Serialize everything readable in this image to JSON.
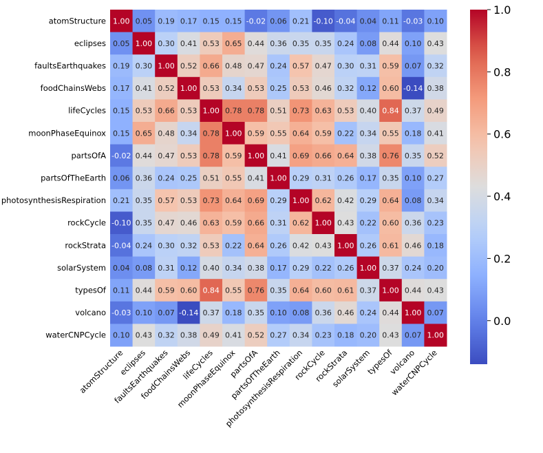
{
  "chart_data": {
    "type": "heatmap",
    "title": "",
    "xlabel": "",
    "ylabel": "",
    "labels": [
      "atomStructure",
      "eclipses",
      "faultsEarthquakes",
      "foodChainsWebs",
      "lifeCycles",
      "moonPhaseEquinox",
      "partsOfA",
      "partsOfTheEarth",
      "photosynthesisRespiration",
      "rockCycle",
      "rockStrata",
      "solarSystem",
      "typesOf",
      "volcano",
      "waterCNPCycle"
    ],
    "matrix": [
      [
        1.0,
        0.05,
        0.19,
        0.17,
        0.15,
        0.15,
        -0.02,
        0.06,
        0.21,
        -0.1,
        -0.04,
        0.04,
        0.11,
        -0.03,
        0.1
      ],
      [
        0.05,
        1.0,
        0.3,
        0.41,
        0.53,
        0.65,
        0.44,
        0.36,
        0.35,
        0.35,
        0.24,
        0.08,
        0.44,
        0.1,
        0.43
      ],
      [
        0.19,
        0.3,
        1.0,
        0.52,
        0.66,
        0.48,
        0.47,
        0.24,
        0.57,
        0.47,
        0.3,
        0.31,
        0.59,
        0.07,
        0.32
      ],
      [
        0.17,
        0.41,
        0.52,
        1.0,
        0.53,
        0.34,
        0.53,
        0.25,
        0.53,
        0.46,
        0.32,
        0.12,
        0.6,
        -0.14,
        0.38
      ],
      [
        0.15,
        0.53,
        0.66,
        0.53,
        1.0,
        0.78,
        0.78,
        0.51,
        0.73,
        0.63,
        0.53,
        0.4,
        0.84,
        0.37,
        0.49
      ],
      [
        0.15,
        0.65,
        0.48,
        0.34,
        0.78,
        1.0,
        0.59,
        0.55,
        0.64,
        0.59,
        0.22,
        0.34,
        0.55,
        0.18,
        0.41
      ],
      [
        -0.02,
        0.44,
        0.47,
        0.53,
        0.78,
        0.59,
        1.0,
        0.41,
        0.69,
        0.66,
        0.64,
        0.38,
        0.76,
        0.35,
        0.52
      ],
      [
        0.06,
        0.36,
        0.24,
        0.25,
        0.51,
        0.55,
        0.41,
        1.0,
        0.29,
        0.31,
        0.26,
        0.17,
        0.35,
        0.1,
        0.27
      ],
      [
        0.21,
        0.35,
        0.57,
        0.53,
        0.73,
        0.64,
        0.69,
        0.29,
        1.0,
        0.62,
        0.42,
        0.29,
        0.64,
        0.08,
        0.34
      ],
      [
        -0.1,
        0.35,
        0.47,
        0.46,
        0.63,
        0.59,
        0.66,
        0.31,
        0.62,
        1.0,
        0.43,
        0.22,
        0.6,
        0.36,
        0.23
      ],
      [
        -0.04,
        0.24,
        0.3,
        0.32,
        0.53,
        0.22,
        0.64,
        0.26,
        0.42,
        0.43,
        1.0,
        0.26,
        0.61,
        0.46,
        0.18
      ],
      [
        0.04,
        0.08,
        0.31,
        0.12,
        0.4,
        0.34,
        0.38,
        0.17,
        0.29,
        0.22,
        0.26,
        1.0,
        0.37,
        0.24,
        0.2
      ],
      [
        0.11,
        0.44,
        0.59,
        0.6,
        0.84,
        0.55,
        0.76,
        0.35,
        0.64,
        0.6,
        0.61,
        0.37,
        1.0,
        0.44,
        0.43
      ],
      [
        -0.03,
        0.1,
        0.07,
        -0.14,
        0.37,
        0.18,
        0.35,
        0.1,
        0.08,
        0.36,
        0.46,
        0.24,
        0.44,
        1.0,
        0.07
      ],
      [
        0.1,
        0.43,
        0.32,
        0.38,
        0.49,
        0.41,
        0.52,
        0.27,
        0.34,
        0.23,
        0.18,
        0.2,
        0.43,
        0.07,
        1.0
      ]
    ],
    "vmin": -0.14,
    "vmax": 1.0,
    "colormap": "coolwarm",
    "colorbar": {
      "ticks": [
        0.0,
        0.2,
        0.4,
        0.6,
        0.8,
        1.0
      ],
      "tick_labels": [
        "0.0",
        "0.2",
        "0.4",
        "0.6",
        "0.8",
        "1.0"
      ],
      "placement": "right"
    },
    "annotations_format": "2 decimals"
  },
  "colors": {
    "cold": "#3b4cc0",
    "neutral": "#dddddd",
    "warm": "#b40426"
  }
}
